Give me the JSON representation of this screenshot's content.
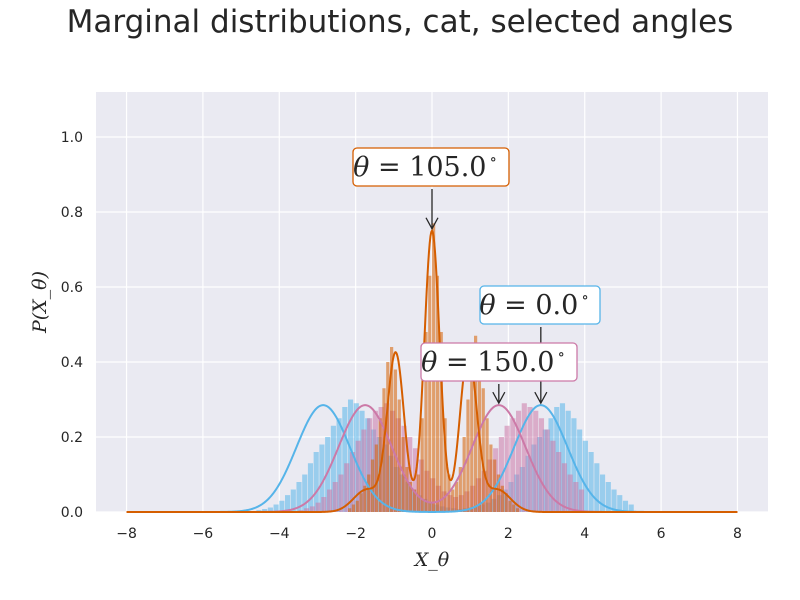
{
  "title": "Marginal distributions, cat, selected angles",
  "chart_data": {
    "type": "histogram+kde",
    "xlabel": "X_θ",
    "ylabel": "P(X_θ)",
    "xlim": [
      -8.8,
      8.8
    ],
    "ylim": [
      0,
      1.12
    ],
    "grid": true,
    "xticks": [
      -8,
      -6,
      -4,
      -2,
      0,
      2,
      4,
      6,
      8
    ],
    "xtick_labels": [
      "−8",
      "−6",
      "−4",
      "−2",
      "0",
      "2",
      "4",
      "6",
      "8"
    ],
    "yticks": [
      0.0,
      0.2,
      0.4,
      0.6,
      0.8,
      1.0
    ],
    "ytick_labels": [
      "0.0",
      "0.2",
      "0.4",
      "0.6",
      "0.8",
      "1.0"
    ],
    "series": [
      {
        "color": "#56B4E9",
        "bins": {
          "start": -4.6,
          "width": 0.15
        },
        "histogram": [
          0.005,
          0.008,
          0.012,
          0.02,
          0.03,
          0.045,
          0.06,
          0.08,
          0.1,
          0.13,
          0.16,
          0.18,
          0.2,
          0.23,
          0.25,
          0.28,
          0.3,
          0.29,
          0.27,
          0.25,
          0.22,
          0.2,
          0.18,
          0.15,
          0.12,
          0.1,
          0.08,
          0.06,
          0.045,
          0.035,
          0.025,
          0.02,
          0.015,
          0.012,
          0.01,
          0.008,
          0.01,
          0.012,
          0.015,
          0.02,
          0.025,
          0.035,
          0.045,
          0.06,
          0.08,
          0.1,
          0.12,
          0.15,
          0.18,
          0.2,
          0.22,
          0.25,
          0.28,
          0.29,
          0.27,
          0.25,
          0.22,
          0.19,
          0.16,
          0.13,
          0.1,
          0.08,
          0.06,
          0.045,
          0.03,
          0.02
        ],
        "kde": {
          "peak": 0.285,
          "modes": [
            [
              -2.85,
              0.5
            ],
            [
              2.85,
              0.5
            ]
          ],
          "sigma": 0.7
        }
      },
      {
        "color": "#CC79A7",
        "bins": {
          "start": -3.5,
          "width": 0.15
        },
        "histogram": [
          0.005,
          0.01,
          0.015,
          0.025,
          0.04,
          0.06,
          0.08,
          0.1,
          0.13,
          0.16,
          0.19,
          0.22,
          0.25,
          0.27,
          0.28,
          0.29,
          0.27,
          0.25,
          0.23,
          0.2,
          0.17,
          0.14,
          0.11,
          0.09,
          0.07,
          0.055,
          0.045,
          0.04,
          0.045,
          0.055,
          0.07,
          0.09,
          0.11,
          0.14,
          0.17,
          0.2,
          0.23,
          0.25,
          0.27,
          0.29,
          0.28,
          0.27,
          0.25,
          0.22,
          0.19,
          0.16,
          0.13,
          0.1,
          0.08,
          0.06
        ],
        "kde": {
          "peak": 0.285,
          "modes": [
            [
              -1.75,
              0.5
            ],
            [
              1.75,
              0.5
            ]
          ],
          "sigma": 0.7
        }
      },
      {
        "color": "#D55E00",
        "bins": {
          "start": -2.2,
          "width": 0.1
        },
        "histogram": [
          0.01,
          0.02,
          0.03,
          0.05,
          0.07,
          0.1,
          0.14,
          0.18,
          0.25,
          0.33,
          0.4,
          0.44,
          0.38,
          0.3,
          0.2,
          0.12,
          0.08,
          0.06,
          0.1,
          0.25,
          0.48,
          0.63,
          0.77,
          0.63,
          0.48,
          0.25,
          0.1,
          0.06,
          0.08,
          0.12,
          0.2,
          0.3,
          0.38,
          0.47,
          0.4,
          0.33,
          0.25,
          0.18,
          0.14,
          0.1,
          0.07,
          0.05,
          0.03,
          0.02,
          0.01
        ],
        "kde": {
          "peak": 0.75,
          "modes": [
            [
              -0.95,
              0.42,
              0.22
            ],
            [
              0.0,
              0.75,
              0.2
            ],
            [
              0.95,
              0.42,
              0.22
            ],
            [
              -1.7,
              0.06,
              0.35
            ],
            [
              1.7,
              0.06,
              0.35
            ]
          ]
        }
      }
    ],
    "annotations": [
      {
        "label_var": "θ",
        "label_rest": " = 105.0",
        "label_sup": "∘",
        "color": "#D55E00",
        "target": [
          0.0,
          0.75
        ]
      },
      {
        "label_var": "θ",
        "label_rest": " = 0.0",
        "label_sup": "∘",
        "color": "#56B4E9",
        "target": [
          2.85,
          0.285
        ]
      },
      {
        "label_var": "θ",
        "label_rest": " = 150.0",
        "label_sup": "∘",
        "color": "#CC79A7",
        "target": [
          1.75,
          0.285
        ]
      }
    ]
  }
}
